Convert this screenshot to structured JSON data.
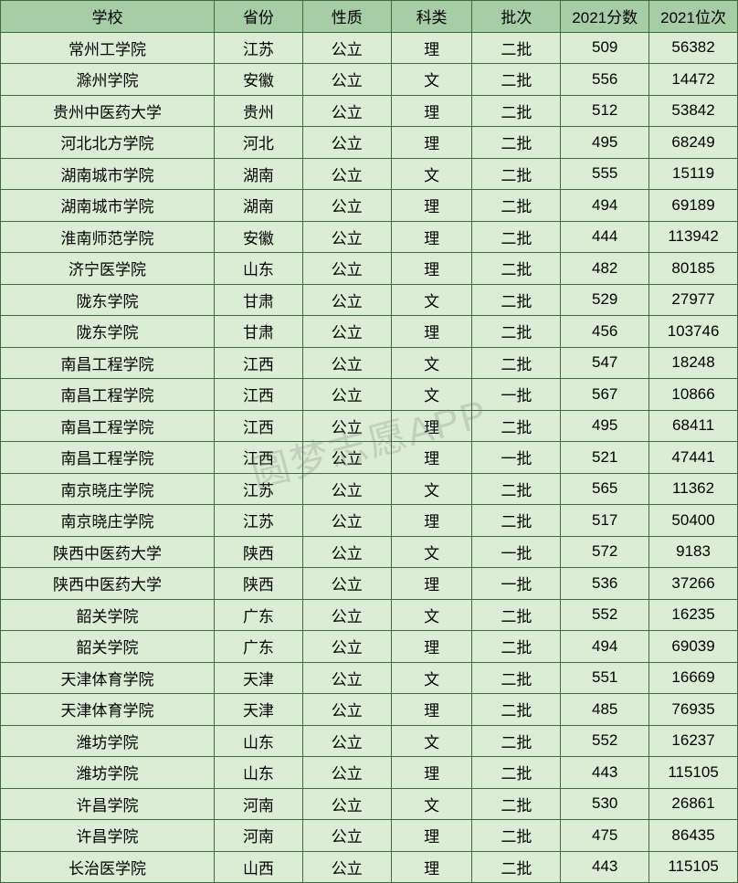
{
  "table": {
    "header_bg": "#a6cda6",
    "row_bg": "#dcedd5",
    "border_color": "#3d6b3d",
    "text_color": "#000000",
    "font_size": 17,
    "columns": [
      {
        "key": "school",
        "label": "学校",
        "width": "29%"
      },
      {
        "key": "province",
        "label": "省份",
        "width": "12%"
      },
      {
        "key": "nature",
        "label": "性质",
        "width": "12%"
      },
      {
        "key": "subject",
        "label": "科类",
        "width": "11%"
      },
      {
        "key": "batch",
        "label": "批次",
        "width": "12%"
      },
      {
        "key": "score",
        "label": "2021分数",
        "width": "12%"
      },
      {
        "key": "rank",
        "label": "2021位次",
        "width": "12%"
      }
    ],
    "rows": [
      [
        "常州工学院",
        "江苏",
        "公立",
        "理",
        "二批",
        "509",
        "56382"
      ],
      [
        "滁州学院",
        "安徽",
        "公立",
        "文",
        "二批",
        "556",
        "14472"
      ],
      [
        "贵州中医药大学",
        "贵州",
        "公立",
        "理",
        "二批",
        "512",
        "53842"
      ],
      [
        "河北北方学院",
        "河北",
        "公立",
        "理",
        "二批",
        "495",
        "68249"
      ],
      [
        "湖南城市学院",
        "湖南",
        "公立",
        "文",
        "二批",
        "555",
        "15119"
      ],
      [
        "湖南城市学院",
        "湖南",
        "公立",
        "理",
        "二批",
        "494",
        "69189"
      ],
      [
        "淮南师范学院",
        "安徽",
        "公立",
        "理",
        "二批",
        "444",
        "113942"
      ],
      [
        "济宁医学院",
        "山东",
        "公立",
        "理",
        "二批",
        "482",
        "80185"
      ],
      [
        "陇东学院",
        "甘肃",
        "公立",
        "文",
        "二批",
        "529",
        "27977"
      ],
      [
        "陇东学院",
        "甘肃",
        "公立",
        "理",
        "二批",
        "456",
        "103746"
      ],
      [
        "南昌工程学院",
        "江西",
        "公立",
        "文",
        "二批",
        "547",
        "18248"
      ],
      [
        "南昌工程学院",
        "江西",
        "公立",
        "文",
        "一批",
        "567",
        "10866"
      ],
      [
        "南昌工程学院",
        "江西",
        "公立",
        "理",
        "二批",
        "495",
        "68411"
      ],
      [
        "南昌工程学院",
        "江西",
        "公立",
        "理",
        "一批",
        "521",
        "47441"
      ],
      [
        "南京晓庄学院",
        "江苏",
        "公立",
        "文",
        "二批",
        "565",
        "11362"
      ],
      [
        "南京晓庄学院",
        "江苏",
        "公立",
        "理",
        "二批",
        "517",
        "50400"
      ],
      [
        "陕西中医药大学",
        "陕西",
        "公立",
        "文",
        "一批",
        "572",
        "9183"
      ],
      [
        "陕西中医药大学",
        "陕西",
        "公立",
        "理",
        "一批",
        "536",
        "37266"
      ],
      [
        "韶关学院",
        "广东",
        "公立",
        "文",
        "二批",
        "552",
        "16235"
      ],
      [
        "韶关学院",
        "广东",
        "公立",
        "理",
        "二批",
        "494",
        "69039"
      ],
      [
        "天津体育学院",
        "天津",
        "公立",
        "文",
        "二批",
        "551",
        "16669"
      ],
      [
        "天津体育学院",
        "天津",
        "公立",
        "理",
        "二批",
        "485",
        "76935"
      ],
      [
        "潍坊学院",
        "山东",
        "公立",
        "文",
        "二批",
        "552",
        "16237"
      ],
      [
        "潍坊学院",
        "山东",
        "公立",
        "理",
        "二批",
        "443",
        "115105"
      ],
      [
        "许昌学院",
        "河南",
        "公立",
        "文",
        "二批",
        "530",
        "26861"
      ],
      [
        "许昌学院",
        "河南",
        "公立",
        "理",
        "二批",
        "475",
        "86435"
      ],
      [
        "长治医学院",
        "山西",
        "公立",
        "理",
        "二批",
        "443",
        "115105"
      ]
    ]
  },
  "watermark": {
    "text": "圆梦志愿APP",
    "color": "rgba(120,120,120,0.25)",
    "font_size": 42,
    "rotation_deg": -15
  }
}
